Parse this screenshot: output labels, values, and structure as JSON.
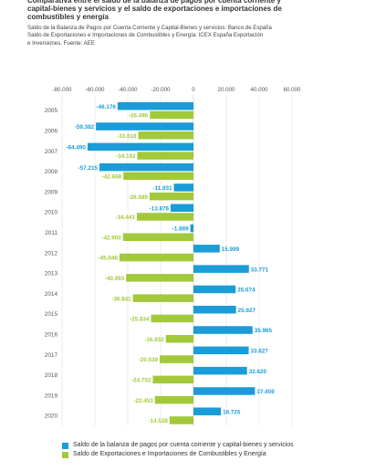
{
  "header": {
    "title": "Comparativa entre el saldo de la balanza de pagos por cuenta corriente y\ncapital-bienes y servicios y el saldo de exportaciones e importaciones de\ncombustibles y energía",
    "sources": "Saldo de la Balanza de Pagos por Cuenta Corriente y Capital-Bienes y servicios: Banco de España\nSaldo de Exportaciones e Importaciones de Combustibles y Energía: ICEX España Exportación\ne Inversiones. Fuente: AEE"
  },
  "chart_data": {
    "type": "bar",
    "orientation": "horizontal",
    "categories": [
      "2005",
      "2006",
      "2007",
      "2008",
      "2009",
      "2010",
      "2011",
      "2012",
      "2013",
      "2014",
      "2015",
      "2016",
      "2017",
      "2018",
      "2019",
      "2020"
    ],
    "category_labels": [
      "2005",
      "2006",
      "2007",
      "2008",
      "2009",
      "2010",
      "2011",
      "2012",
      "2013",
      "2014",
      "2015",
      "2016",
      "2017",
      "2018",
      "2019",
      "2020"
    ],
    "series": [
      {
        "name": "Saldo de la balanza de pagos por cuenta corriente y capital-bienes y servicios",
        "color": "#1a9cd8",
        "values": [
          -46176,
          -59382,
          -64490,
          -57215,
          -11931,
          -13876,
          -1889,
          15999,
          33771,
          25674,
          25927,
          35965,
          33627,
          32620,
          37459,
          16725
        ],
        "labels": [
          "-46.176",
          "-59.382",
          "-64.490",
          "-57.215",
          "-11.931",
          "-13.876",
          "-1.889",
          "15.999",
          "33.771",
          "25.674",
          "25.927",
          "35.965",
          "33.627",
          "32.620",
          "37.459",
          "16.725"
        ]
      },
      {
        "name": "Saldo de Exportaciones e Importaciones de Combustibles y Energía",
        "color": "#a2c93a",
        "values": [
          -26496,
          -33618,
          -34192,
          -42668,
          -26689,
          -34441,
          -42900,
          -45046,
          -40993,
          -36841,
          -25834,
          -16832,
          -20539,
          -24752,
          -23453,
          -14528
        ],
        "labels": [
          "-26.496",
          "-33.618",
          "-34.192",
          "-42.668",
          "-26.689",
          "-34.441",
          "-42.900",
          "-45.046",
          "-40.993",
          "-36.841",
          "-25.834",
          "-16.832",
          "-20.539",
          "-24.752",
          "-23.453",
          "-14.528"
        ]
      }
    ],
    "xlim": [
      -80000,
      60000
    ],
    "xticks": [
      -80000,
      -60000,
      -40000,
      -20000,
      0,
      20000,
      40000,
      60000
    ],
    "xtick_labels": [
      "-80.000",
      "-60.000",
      "-40.000",
      "-20.000",
      "0",
      "20.000",
      "40.000",
      "60.000"
    ],
    "grid": true,
    "legend_position": "bottom"
  }
}
